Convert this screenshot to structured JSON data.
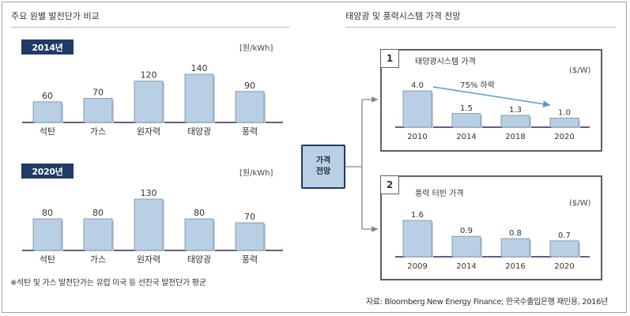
{
  "left_title": "주요 원별 발전단가 비교",
  "right_title": "태양광 및 풍력시스템 가격 전망",
  "colors": {
    "bar_fill": "#b9cfe4",
    "bar_stroke": "#6f8aa6",
    "baseline": "#6a5a8a",
    "badge": "#1f3b66"
  },
  "center_label_1": "가격",
  "center_label_2": "전망",
  "footnote": "※석탄 및 가스 발전단가는 유럽 미국 등 선진국 발전단가 평균",
  "source": "자료: Bloomberg New Energy Finance; 한국수출입은행 재인용, 2016년",
  "chart_data": [
    {
      "type": "bar",
      "year_label": "2014년",
      "unit": "[원/kWh]",
      "categories": [
        "석탄",
        "가스",
        "원자력",
        "태양광",
        "풍력"
      ],
      "values": [
        60,
        70,
        120,
        140,
        90
      ],
      "ylim": [
        0,
        140
      ]
    },
    {
      "type": "bar",
      "year_label": "2020년",
      "unit": "[원/kWh]",
      "categories": [
        "석탄",
        "가스",
        "원자력",
        "태양광",
        "풍력"
      ],
      "values": [
        80,
        80,
        130,
        80,
        70
      ],
      "ylim": [
        0,
        130
      ]
    },
    {
      "type": "bar",
      "badge": "1",
      "title": "태양광시스템 가격",
      "unit": "($/W)",
      "categories": [
        "2010",
        "2014",
        "2018",
        "2020"
      ],
      "values": [
        4.0,
        1.5,
        1.3,
        1.0
      ],
      "value_labels": [
        "4.0",
        "1.5",
        "1.3",
        "1.0"
      ],
      "annotation": "75% 하락",
      "ylim": [
        0,
        4.0
      ]
    },
    {
      "type": "bar",
      "badge": "2",
      "title": "풍력 터빈 가격",
      "unit": "($/W)",
      "categories": [
        "2009",
        "2014",
        "2016",
        "2020"
      ],
      "values": [
        1.6,
        0.9,
        0.8,
        0.7
      ],
      "value_labels": [
        "1.6",
        "0.9",
        "0.8",
        "0.7"
      ],
      "ylim": [
        0,
        1.6
      ]
    }
  ]
}
